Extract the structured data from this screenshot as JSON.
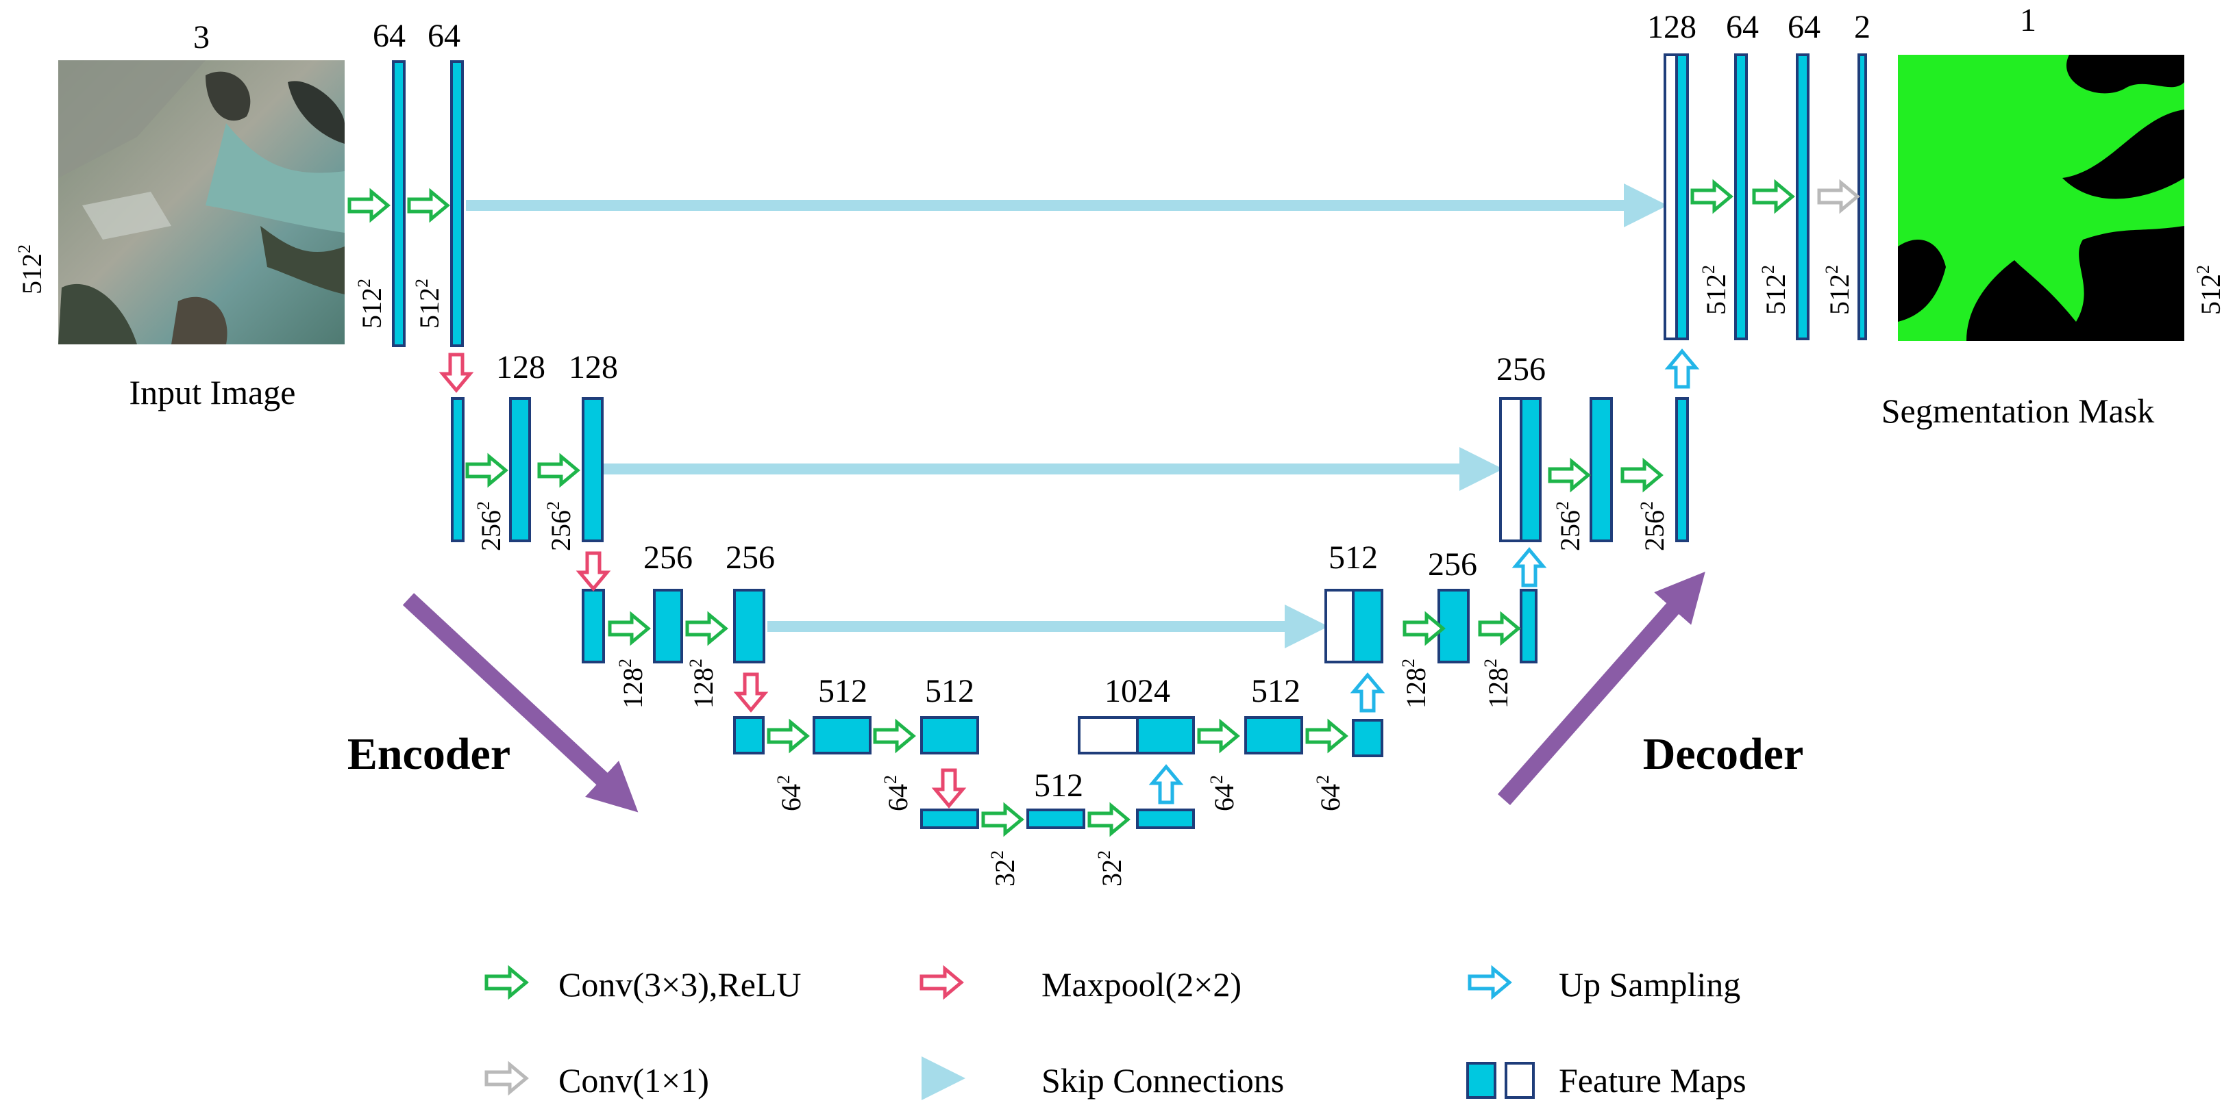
{
  "colors": {
    "conv": "#1eb54a",
    "maxpool": "#e8476e",
    "upsample": "#22b5e8",
    "conv1x1": "#b9b9b9",
    "skip": "#a6dcea",
    "feature_map": "#00c8e0",
    "feature_map_border": "#1f3d7a",
    "phase_arrow": "#8a5ca6",
    "mask_foreground": "#22ee22",
    "mask_background": "#000000"
  },
  "labels": {
    "input_image": "Input Image",
    "segmentation_mask": "Segmentation Mask",
    "encoder": "Encoder",
    "decoder": "Decoder"
  },
  "channels": {
    "input": "3",
    "enc1_a": "64",
    "enc1_b": "64",
    "enc2_a": "128",
    "enc2_b": "128",
    "enc3_a": "256",
    "enc3_b": "256",
    "enc4_a": "512",
    "enc4_b": "512",
    "bottleneck": "512",
    "up4": "1024",
    "dec4": "512",
    "up3": "512",
    "dec3": "256",
    "up2": "256",
    "up1": "128",
    "dec1_a": "64",
    "dec1_b": "64",
    "out": "2",
    "mask": "1"
  },
  "sizes": {
    "s512": "512",
    "s256": "256",
    "s128": "128",
    "s64": "64",
    "s32": "32",
    "sup": "2"
  },
  "legend": [
    {
      "icon": "conv-arrow-icon",
      "label": "Conv(3×3),ReLU"
    },
    {
      "icon": "maxpool-arrow-icon",
      "label": "Maxpool(2×2)"
    },
    {
      "icon": "upsampling-arrow-icon",
      "label": "Up Sampling"
    },
    {
      "icon": "conv1x1-arrow-icon",
      "label": "Conv(1×1)"
    },
    {
      "icon": "skip-connection-icon",
      "label": "Skip Connections"
    },
    {
      "icon": "feature-map-icon",
      "label": "Feature Maps"
    }
  ]
}
